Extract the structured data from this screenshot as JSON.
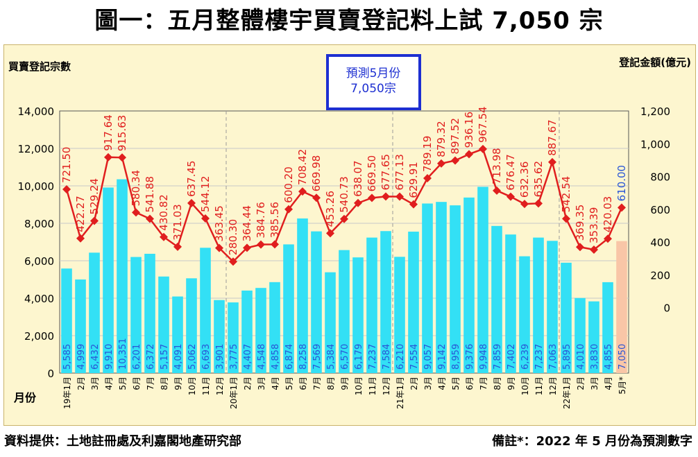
{
  "title": "圖一：五月整體樓宇買賣登記料上試 7,050 宗",
  "footer": {
    "source": "資料提供：土地註冊處及利嘉閣地產研究部",
    "note": "備註*：2022 年 5 月份為預測數字"
  },
  "annotation": {
    "line1": "預測5月份",
    "line2": "7,050宗"
  },
  "colors": {
    "bar": "#33e0f5",
    "bar_forecast": "#f9c6a7",
    "line": "#e01e1e",
    "value_text_blue": "#2855d6",
    "box_border": "#1d2fd1"
  },
  "chart_data": {
    "type": "bar",
    "title": "圖一：五月整體樓宇買賣登記料上試 7,050 宗",
    "xlabel": "月份",
    "ylabel": "買賣登記宗數",
    "y2label": "登記金額(億元)",
    "ylim": [
      0,
      14000
    ],
    "y2lim": [
      -400,
      1200
    ],
    "yticks": [
      "0",
      "2,000",
      "4,000",
      "6,000",
      "8,000",
      "10,000",
      "12,000",
      "14,000"
    ],
    "y2ticks": [
      "0",
      "200",
      "400",
      "600",
      "800",
      "1,000",
      "1,200"
    ],
    "grid": true,
    "categories": [
      "19年1月",
      "2月",
      "3月",
      "4月",
      "5月",
      "6月",
      "7月",
      "8月",
      "9月",
      "10月",
      "11月",
      "12月",
      "20年1月",
      "2月",
      "3月",
      "4月",
      "5月",
      "6月",
      "7月",
      "8月",
      "9月",
      "10月",
      "11月",
      "12月",
      "21年1月",
      "2月",
      "3月",
      "4月",
      "5月",
      "6月",
      "7月",
      "8月",
      "9月",
      "10月",
      "11月",
      "12月",
      "22年1月",
      "2月",
      "3月",
      "4月",
      "5月*"
    ],
    "series": [
      {
        "name": "買賣登記宗數",
        "kind": "bar",
        "values": [
          5585,
          4999,
          6432,
          9910,
          10351,
          6201,
          6372,
          5157,
          4091,
          5062,
          6693,
          3901,
          3775,
          4407,
          4548,
          4858,
          6874,
          8258,
          7569,
          5384,
          6570,
          6179,
          7237,
          7584,
          6210,
          7554,
          9057,
          9142,
          8959,
          9376,
          9948,
          7859,
          7402,
          6239,
          7237,
          7063,
          5895,
          4010,
          3830,
          4855,
          7050
        ],
        "labels": [
          "5,585",
          "4,999",
          "6,432",
          "9,910",
          "10,351",
          "6,201",
          "6,372",
          "5,157",
          "4,091",
          "5,062",
          "6,693",
          "3,901",
          "3,775",
          "4,407",
          "4,548",
          "4,858",
          "6,874",
          "8,258",
          "7,569",
          "5,384",
          "6,570",
          "6,179",
          "7,237",
          "7,584",
          "6,210",
          "7,554",
          "9,057",
          "9,142",
          "8,959",
          "9,376",
          "9,948",
          "7,859",
          "7,402",
          "6,239",
          "7,237",
          "7,063",
          "5,895",
          "4,010",
          "3,830",
          "4,855",
          "7,050"
        ]
      },
      {
        "name": "登記金額(億元)",
        "kind": "line",
        "axis": "right",
        "values": [
          721.5,
          422.27,
          529.24,
          917.64,
          915.63,
          580.34,
          541.88,
          430.82,
          371.03,
          637.45,
          544.12,
          363.45,
          280.3,
          364.44,
          384.76,
          385.56,
          600.2,
          708.42,
          669.98,
          453.26,
          540.73,
          638.07,
          669.5,
          677.65,
          677.13,
          629.91,
          789.19,
          879.32,
          897.52,
          936.16,
          967.54,
          713.98,
          676.47,
          632.36,
          635.62,
          887.67,
          542.54,
          369.35,
          353.39,
          420.03,
          610.0
        ],
        "labels": [
          "721.50",
          "422.27",
          "529.24",
          "917.64",
          "915.63",
          "580.34",
          "541.88",
          "430.82",
          "371.03",
          "637.45",
          "544.12",
          "363.45",
          "280.30",
          "364.44",
          "384.76",
          "385.56",
          "600.20",
          "708.42",
          "669.98",
          "453.26",
          "540.73",
          "638.07",
          "669.50",
          "677.65",
          "677.13",
          "629.91",
          "789.19",
          "879.32",
          "897.52",
          "936.16",
          "967.54",
          "713.98",
          "676.47",
          "632.36",
          "635.62",
          "887.67",
          "542.54",
          "369.35",
          "353.39",
          "420.03",
          "610.00"
        ]
      }
    ]
  }
}
